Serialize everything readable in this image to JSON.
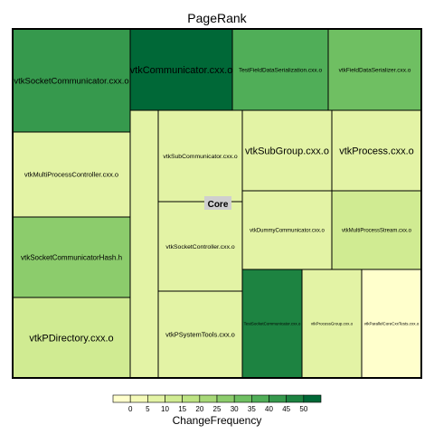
{
  "chart_data": {
    "type": "treemap",
    "title": "PageRank",
    "group_label": "Core",
    "metric": "ChangeFrequency",
    "cells": [
      {
        "label": "vtkSocketCommunicator.cxx.o",
        "value": 40
      },
      {
        "label": "vtkCommunicator.cxx.o",
        "value": 50
      },
      {
        "label": "TestFieldDataSerialization.cxx.o",
        "value": 35
      },
      {
        "label": "vtkFieldDataSerializer.cxx.o",
        "value": 30
      },
      {
        "label": "vtkMultiProcessController.cxx.o",
        "value": 10
      },
      {
        "label": "vtkSocketCommunicatorHash.h",
        "value": 25
      },
      {
        "label": "vtkPDirectory.cxx.o",
        "value": 15
      },
      {
        "label": "",
        "value": 10
      },
      {
        "label": "vtkSubCommunicator.cxx.o",
        "value": 10
      },
      {
        "label": "vtkSocketController.cxx.o",
        "value": 10
      },
      {
        "label": "vtkPSystemTools.cxx.o",
        "value": 10
      },
      {
        "label": "vtkSubGroup.cxx.o",
        "value": 10
      },
      {
        "label": "vtkProcess.cxx.o",
        "value": 10
      },
      {
        "label": "vtkDummyCommunicator.cxx.o",
        "value": 10
      },
      {
        "label": "vtkMultiProcessStream.cxx.o",
        "value": 15
      },
      {
        "label": "TestSocketCommunicator.cxx.o",
        "value": 45
      },
      {
        "label": "vtkProcessGroup.cxx.o",
        "value": 10
      },
      {
        "label": "vtkParallelCoreCxxTests.cxx.o",
        "value": 0
      }
    ],
    "legend": {
      "title": "ChangeFrequency",
      "ticks": [
        "0",
        "5",
        "10",
        "15",
        "20",
        "25",
        "30",
        "35",
        "40",
        "45",
        "50"
      ],
      "colors": [
        "#ffffcc",
        "#f4fab8",
        "#e3f3a5",
        "#d0eb92",
        "#bde383",
        "#a7d878",
        "#8ccc6c",
        "#6fbf62",
        "#50ae58",
        "#36994d",
        "#1d8341",
        "#006837"
      ]
    }
  }
}
